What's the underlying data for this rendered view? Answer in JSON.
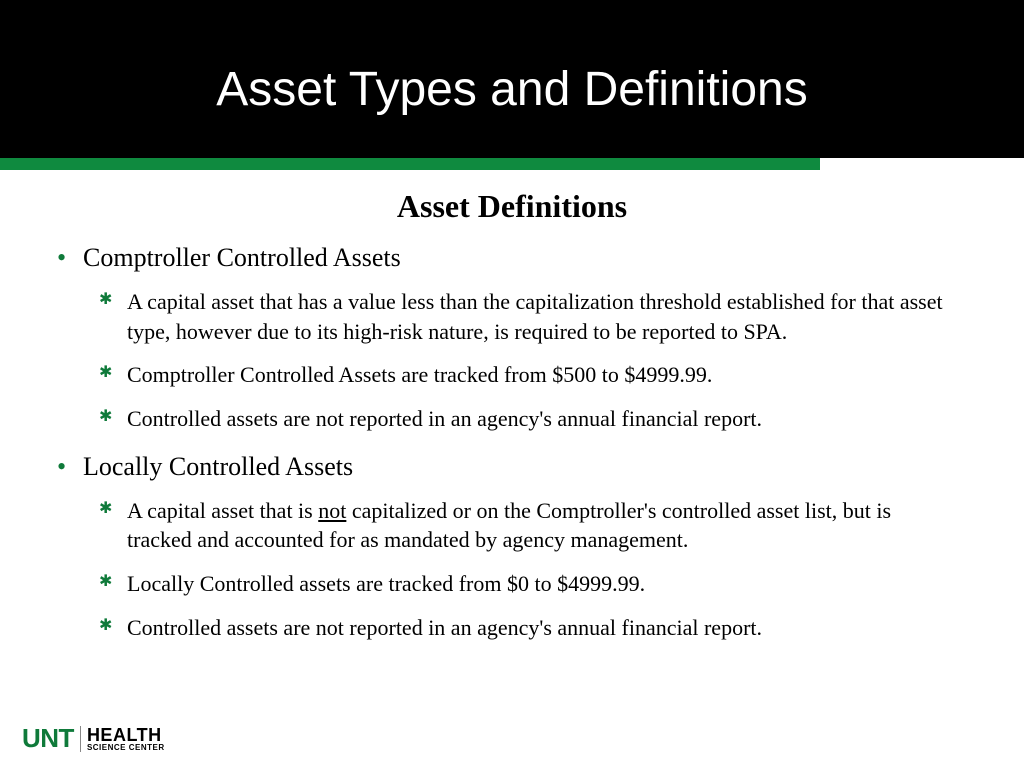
{
  "header": {
    "title": "Asset Types and Definitions",
    "bg_color": "#000000",
    "title_color": "#ffffff",
    "accent_bar_color": "#0f8a3f"
  },
  "subtitle": "Asset Definitions",
  "sections": [
    {
      "heading": "Comptroller Controlled Assets",
      "bullets": [
        {
          "text": "A capital asset that has a value less than the capitalization threshold established for that asset type, however due to its high-risk nature, is required to be reported to SPA."
        },
        {
          "text": "Comptroller Controlled Assets are tracked from $500 to $4999.99."
        },
        {
          "text": "Controlled assets are not reported in an agency's annual financial report."
        }
      ]
    },
    {
      "heading": "Locally Controlled Assets",
      "bullets": [
        {
          "pre": "A capital asset that is ",
          "underline": "not",
          "post": " capitalized or on the Comptroller's controlled asset list, but is tracked and accounted for as mandated by agency management."
        },
        {
          "text": "Locally Controlled assets are tracked from $0 to $4999.99."
        },
        {
          "text": "Controlled assets are not reported in an agency's annual financial report."
        }
      ]
    }
  ],
  "logo": {
    "unt": "UNT",
    "health": "HEALTH",
    "science_center": "SCIENCE CENTER",
    "unt_color": "#0f7a3a"
  },
  "style": {
    "bullet_color": "#0f7a3a",
    "body_font": "Georgia",
    "header_font": "Arial"
  }
}
